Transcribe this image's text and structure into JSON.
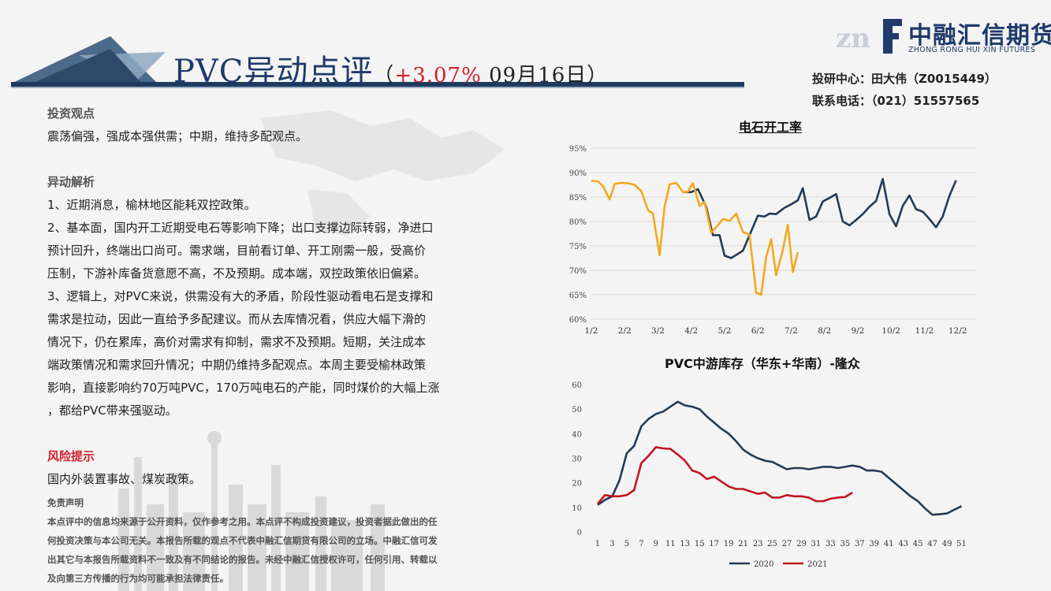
{
  "header": {
    "title_main": "PVC异动点评",
    "title_open": "（",
    "title_pct": "+3.07%",
    "title_date": " 09月16日",
    "title_close": "）"
  },
  "brand": {
    "name_cn": "中融汇信期货",
    "name_en": "ZHONG RONG HUI XIN FUTURES"
  },
  "contact": {
    "analyst": "投研中心：田大伟（Z0015449）",
    "phone": "联系电话：（021）51557565"
  },
  "content": {
    "view_title": "投资观点",
    "view_text": "震荡偏强，强成本强供需；中期，维持多配观点。",
    "analysis_title": "异动解析",
    "analysis_1": "1、近期消息，榆林地区能耗双控政策。",
    "analysis_2a": "2、基本面，国内开工近期受电石等影响下降；出口支撑边际转弱，净进口",
    "analysis_2b": "预计回升，终端出口尚可。需求端，目前看订单、开工刚需一般，受高价",
    "analysis_2c": "压制，下游补库备货意愿不高，不及预期。成本端，双控政策依旧偏紧。",
    "analysis_3a": "3、逻辑上，对PVC来说，供需没有大的矛盾，阶段性驱动看电石是支撑和",
    "analysis_3b": "需求是拉动，因此一直给予多配建议。而从去库情况看，供应大幅下滑的",
    "analysis_3c": "情况下，仍在累库，高价对需求有抑制，需求不及预期。短期，关注成本",
    "analysis_3d": "端政策情况和需求回升情况；中期仍维持多配观点。本周主要受榆林政策",
    "analysis_3e": "影响，直接影响约70万吨PVC，170万吨电石的产能，同时煤价的大幅上涨",
    "analysis_3f": "，都给PVC带来强驱动。",
    "risk_title": "风险提示",
    "risk_text": "国内外装置事故、煤炭政策。"
  },
  "disclaimer": {
    "title": "免责声明",
    "line1": "本点评中的信息均来源于公开资料，仅作参考之用。本点评不构成投资建议，投资者据此做出的任",
    "line2": "何投资决策与本公司无关。本报告所载的观点不代表中融汇信期货有限公司的立场。中融汇信可发",
    "line3": "出其它与本报告所载资料不一致及有不同结论的报告。未经中融汇信授权许可，任何引用、转载以",
    "line4": "及向第三方传播的行为均可能承担法律责任。"
  },
  "colors": {
    "navy": "#243a55",
    "orange": "#f4a81d",
    "red": "#c0161f",
    "title_blue": "#1f3a6b"
  },
  "chart_data": [
    {
      "type": "line",
      "title": "电石开工率",
      "categories": [
        "1/2",
        "2/2",
        "3/2",
        "4/2",
        "5/2",
        "6/2",
        "7/2",
        "8/2",
        "9/2",
        "10/2",
        "11/2",
        "12/2"
      ],
      "ylim": [
        0.6,
        0.95
      ],
      "yticks": [
        "60%",
        "65%",
        "70%",
        "75%",
        "80%",
        "85%",
        "90%",
        "95%"
      ],
      "legend": "none",
      "series": [
        {
          "color": "#243a55",
          "points": [
            [
              2.75,
              0.86
            ],
            [
              3.0,
              0.86
            ],
            [
              3.2,
              0.866
            ],
            [
              3.45,
              0.83
            ],
            [
              3.65,
              0.772
            ],
            [
              3.85,
              0.772
            ],
            [
              4.0,
              0.73
            ],
            [
              4.2,
              0.725
            ],
            [
              4.55,
              0.74
            ],
            [
              4.8,
              0.78
            ],
            [
              5.0,
              0.812
            ],
            [
              5.2,
              0.81
            ],
            [
              5.35,
              0.816
            ],
            [
              5.55,
              0.815
            ],
            [
              5.8,
              0.828
            ],
            [
              6.0,
              0.835
            ],
            [
              6.2,
              0.843
            ],
            [
              6.35,
              0.868
            ],
            [
              6.55,
              0.803
            ],
            [
              6.75,
              0.81
            ],
            [
              6.95,
              0.841
            ],
            [
              7.15,
              0.848
            ],
            [
              7.35,
              0.856
            ],
            [
              7.55,
              0.8
            ],
            [
              7.75,
              0.792
            ],
            [
              7.95,
              0.803
            ],
            [
              8.15,
              0.815
            ],
            [
              8.35,
              0.83
            ],
            [
              8.55,
              0.842
            ],
            [
              8.75,
              0.887
            ],
            [
              8.95,
              0.815
            ],
            [
              9.15,
              0.79
            ],
            [
              9.35,
              0.832
            ],
            [
              9.55,
              0.853
            ],
            [
              9.75,
              0.825
            ],
            [
              9.95,
              0.82
            ],
            [
              10.15,
              0.805
            ],
            [
              10.35,
              0.788
            ],
            [
              10.55,
              0.81
            ],
            [
              10.75,
              0.852
            ],
            [
              10.95,
              0.884
            ]
          ]
        },
        {
          "color": "#f4a81d",
          "points": [
            [
              0.0,
              0.883
            ],
            [
              0.2,
              0.882
            ],
            [
              0.35,
              0.872
            ],
            [
              0.55,
              0.845
            ],
            [
              0.7,
              0.877
            ],
            [
              0.9,
              0.879
            ],
            [
              1.1,
              0.878
            ],
            [
              1.3,
              0.875
            ],
            [
              1.5,
              0.862
            ],
            [
              1.7,
              0.823
            ],
            [
              1.85,
              0.816
            ],
            [
              2.05,
              0.731
            ],
            [
              2.2,
              0.83
            ],
            [
              2.35,
              0.876
            ],
            [
              2.55,
              0.879
            ],
            [
              2.75,
              0.86
            ],
            [
              2.9,
              0.861
            ],
            [
              3.05,
              0.878
            ],
            [
              3.25,
              0.832
            ],
            [
              3.4,
              0.84
            ],
            [
              3.6,
              0.777
            ],
            [
              3.8,
              0.792
            ],
            [
              3.95,
              0.805
            ],
            [
              4.15,
              0.801
            ],
            [
              4.35,
              0.816
            ],
            [
              4.55,
              0.778
            ],
            [
              4.75,
              0.773
            ],
            [
              4.95,
              0.654
            ],
            [
              5.1,
              0.65
            ],
            [
              5.25,
              0.727
            ],
            [
              5.4,
              0.764
            ],
            [
              5.55,
              0.69
            ],
            [
              5.75,
              0.742
            ],
            [
              5.9,
              0.793
            ],
            [
              6.05,
              0.696
            ],
            [
              6.2,
              0.737
            ]
          ]
        }
      ]
    },
    {
      "type": "line",
      "title": "PVC中游库存（华东+华南）-隆众",
      "categories": [
        "1",
        "3",
        "5",
        "7",
        "9",
        "11",
        "13",
        "15",
        "17",
        "19",
        "21",
        "23",
        "25",
        "27",
        "29",
        "31",
        "33",
        "35",
        "37",
        "39",
        "41",
        "43",
        "45",
        "47",
        "49",
        "51"
      ],
      "ylim": [
        0,
        60
      ],
      "yticks": [
        "0",
        "10",
        "20",
        "30",
        "40",
        "50",
        "60"
      ],
      "legend": "bottom",
      "series": [
        {
          "name": "2020",
          "color": "#243a55",
          "points": [
            [
              1,
              11
            ],
            [
              2,
              13
            ],
            [
              3,
              14.5
            ],
            [
              4,
              21
            ],
            [
              5,
              32
            ],
            [
              6,
              35
            ],
            [
              7,
              43
            ],
            [
              8,
              46
            ],
            [
              9,
              48
            ],
            [
              10,
              49
            ],
            [
              11,
              51
            ],
            [
              12,
              53
            ],
            [
              13,
              51.5
            ],
            [
              14,
              51
            ],
            [
              15,
              50
            ],
            [
              16,
              47
            ],
            [
              17,
              44.5
            ],
            [
              18,
              42
            ],
            [
              19,
              40
            ],
            [
              20,
              37
            ],
            [
              21,
              33.5
            ],
            [
              22,
              31.5
            ],
            [
              23,
              30
            ],
            [
              24,
              29
            ],
            [
              25,
              28.5
            ],
            [
              26,
              27
            ],
            [
              27,
              25.5
            ],
            [
              28,
              26
            ],
            [
              29,
              26
            ],
            [
              30,
              25.5
            ],
            [
              31,
              26
            ],
            [
              32,
              26.5
            ],
            [
              33,
              26.5
            ],
            [
              34,
              26
            ],
            [
              35,
              26.5
            ],
            [
              36,
              27
            ],
            [
              37,
              26.5
            ],
            [
              38,
              25
            ],
            [
              39,
              25
            ],
            [
              40,
              24.5
            ],
            [
              41,
              22
            ],
            [
              42,
              19.5
            ],
            [
              43,
              17
            ],
            [
              44,
              14.5
            ],
            [
              45,
              12.5
            ],
            [
              46,
              9.5
            ],
            [
              47,
              7
            ],
            [
              48,
              7.2
            ],
            [
              49,
              7.5
            ],
            [
              50,
              9
            ],
            [
              51,
              10.5
            ]
          ]
        },
        {
          "name": "2021",
          "color": "#c0161f",
          "points": [
            [
              1,
              11.5
            ],
            [
              2,
              15
            ],
            [
              3,
              14.5
            ],
            [
              4,
              14.5
            ],
            [
              5,
              15
            ],
            [
              6,
              17
            ],
            [
              7,
              28
            ],
            [
              8,
              31
            ],
            [
              9,
              34.5
            ],
            [
              10,
              34
            ],
            [
              11,
              33.8
            ],
            [
              12,
              31.5
            ],
            [
              13,
              29
            ],
            [
              14,
              25
            ],
            [
              15,
              24
            ],
            [
              16,
              21.5
            ],
            [
              17,
              22.5
            ],
            [
              18,
              20.5
            ],
            [
              19,
              18.5
            ],
            [
              20,
              17.5
            ],
            [
              21,
              17.5
            ],
            [
              22,
              16.5
            ],
            [
              23,
              15.5
            ],
            [
              24,
              16
            ],
            [
              25,
              14
            ],
            [
              26,
              14
            ],
            [
              27,
              15
            ],
            [
              28,
              14.5
            ],
            [
              29,
              14.5
            ],
            [
              30,
              14
            ],
            [
              31,
              12.5
            ],
            [
              32,
              12.5
            ],
            [
              33,
              13.5
            ],
            [
              34,
              14
            ],
            [
              35,
              14.2
            ],
            [
              36,
              16
            ]
          ]
        }
      ]
    }
  ]
}
